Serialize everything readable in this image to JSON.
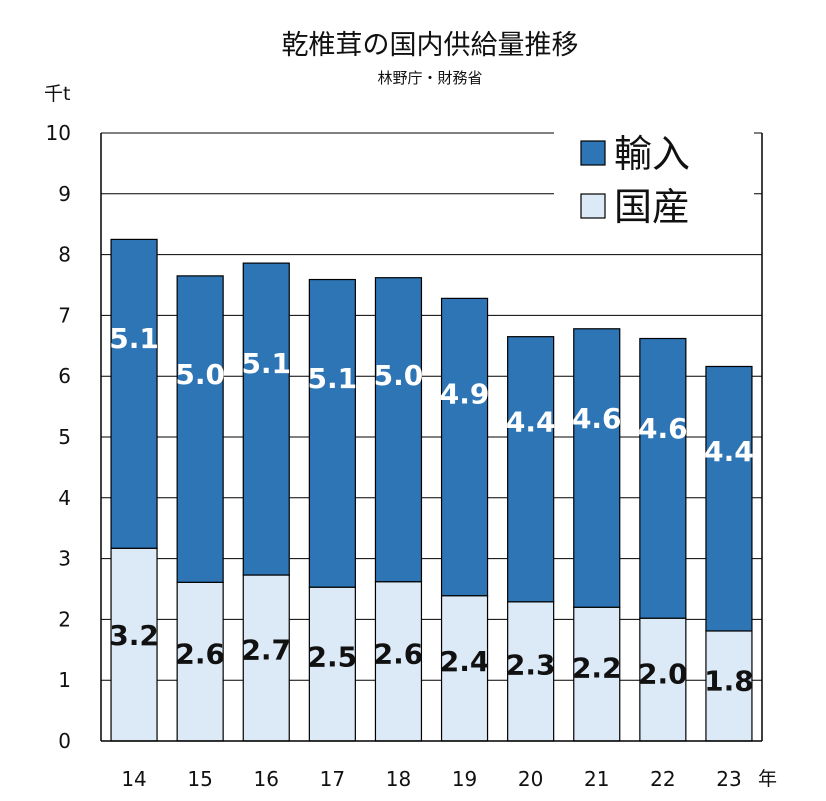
{
  "chart_data": {
    "type": "bar",
    "stacked": true,
    "title": "乾椎茸の国内供給量推移",
    "subtitle": "林野庁・財務省",
    "ylabel": "千t",
    "xlabel": "年",
    "ylim": [
      0,
      10
    ],
    "yticks": [
      "0",
      "1",
      "2",
      "3",
      "4",
      "5",
      "6",
      "7",
      "8",
      "9",
      "10"
    ],
    "grid": true,
    "legend_position": "top-right",
    "categories": [
      "14",
      "15",
      "16",
      "17",
      "18",
      "19",
      "20",
      "21",
      "22",
      "23"
    ],
    "series": [
      {
        "name": "国産",
        "color": "#dce9f6",
        "values": [
          3.17,
          2.61,
          2.73,
          2.53,
          2.62,
          2.39,
          2.29,
          2.2,
          2.02,
          1.81
        ],
        "labels": [
          "3.2",
          "2.6",
          "2.7",
          "2.5",
          "2.6",
          "2.4",
          "2.3",
          "2.2",
          "2.0",
          "1.8"
        ]
      },
      {
        "name": "輸入",
        "color": "#2e75b6",
        "values": [
          5.08,
          5.04,
          5.13,
          5.06,
          5.0,
          4.89,
          4.36,
          4.58,
          4.6,
          4.35
        ],
        "labels": [
          "5.1",
          "5.0",
          "5.1",
          "5.1",
          "5.0",
          "4.9",
          "4.4",
          "4.6",
          "4.6",
          "4.4"
        ]
      }
    ],
    "legend": [
      "輸入",
      "国産"
    ]
  }
}
